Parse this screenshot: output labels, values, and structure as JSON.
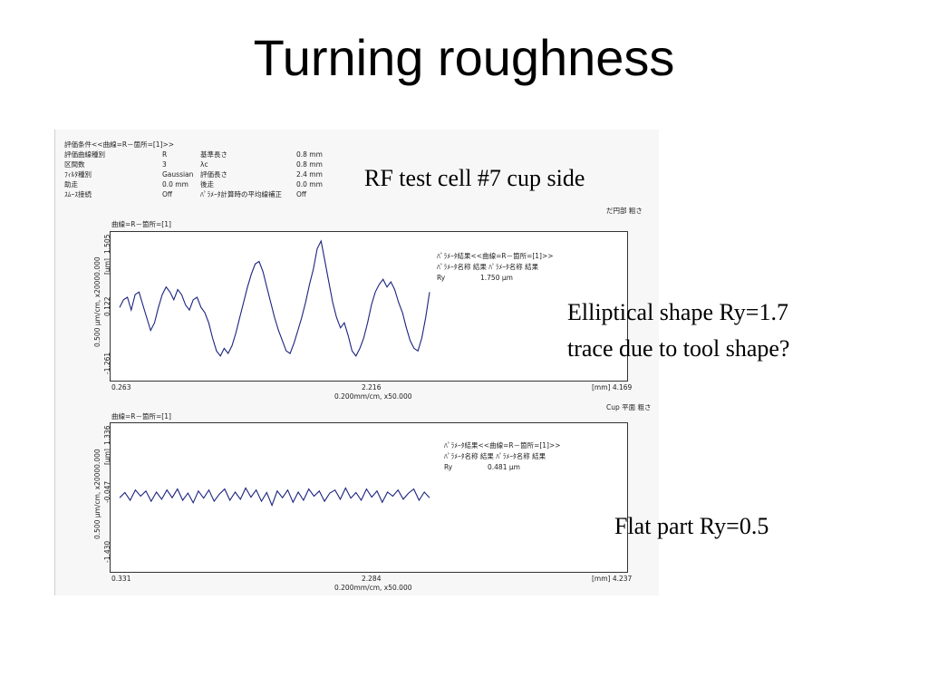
{
  "slide": {
    "title": "Turning roughness",
    "callout_cell": "RF test cell #7 cup side",
    "callout_elliptical_1": "Elliptical shape Ry=1.7",
    "callout_elliptical_2": "trace due to tool shape?",
    "callout_flat": "Flat part Ry=0.5"
  },
  "conditions": {
    "header": "評価条件<<曲線=R－箇所=[1]>>",
    "rows": [
      {
        "label": "評価曲線種別",
        "value": "R",
        "label2": "基準長さ",
        "value2": "0.8 mm"
      },
      {
        "label": "区間数",
        "value": "3",
        "label2": "λc",
        "value2": "0.8 mm"
      },
      {
        "label": "ﾌｨﾙﾀ種別",
        "value": "Gaussian",
        "label2": "評価長さ",
        "value2": "2.4 mm"
      },
      {
        "label": "助走",
        "value": "0.0 mm",
        "label2": "後走",
        "value2": "0.0 mm"
      },
      {
        "label": "ｽﾑｰｽ接続",
        "value": "Off",
        "label2": "ﾊﾟﾗﾒｰﾀ計算時の平均線補正",
        "value2": "Off"
      }
    ]
  },
  "chart1": {
    "note": "だ円部 粗さ",
    "curve_label": "曲線=R－箇所=[1]",
    "y_axis_label": "0.500 μm/cm, x20000.000",
    "y_unit": "[μm]",
    "y_ticks": [
      "1.505",
      "0.122",
      "-1.261"
    ],
    "x_ticks": [
      "0.263",
      "2.216",
      "[mm] 4.169"
    ],
    "x_scale": "0.200mm/cm, x50.000",
    "result_header": "ﾊﾟﾗﾒｰﾀ結果<<曲線=R－箇所=[1]>>",
    "result_cols": "ﾊﾟﾗﾒｰﾀ名称   結果        ﾊﾟﾗﾒｰﾀ名称   結果",
    "param_name": "Ry",
    "param_value": "1.750 μm",
    "line_color": "#1a237e"
  },
  "chart2": {
    "note": "Cup 平面 粗さ",
    "curve_label": "曲線=R－箇所=[1]",
    "y_axis_label": "0.500 μm/cm, x20000.000",
    "y_unit": "[μm]",
    "y_ticks": [
      "1.336",
      "-0.047",
      "-1.430"
    ],
    "x_ticks": [
      "0.331",
      "2.284",
      "[mm] 4.237"
    ],
    "x_scale": "0.200mm/cm, x50.000",
    "result_header": "ﾊﾟﾗﾒｰﾀ結果<<曲線=R－箇所=[1]>>",
    "result_cols": "ﾊﾟﾗﾒｰﾀ名称   結果        ﾊﾟﾗﾒｰﾀ名称   結果",
    "param_name": "Ry",
    "param_value": "0.481 μm",
    "line_color": "#1a237e"
  },
  "chart_data": [
    {
      "type": "line",
      "xlabel": "0.200mm/cm, x50.000",
      "ylabel": "0.500 μm/cm, x20000.000",
      "xlim": [
        0.263,
        4.169
      ],
      "ylim": [
        -1.261,
        1.505
      ],
      "series": [
        {
          "values": [
            0.1,
            0.25,
            0.3,
            0.05,
            0.35,
            0.4,
            0.15,
            -0.1,
            -0.35,
            -0.2,
            0.1,
            0.35,
            0.5,
            0.4,
            0.25,
            0.45,
            0.35,
            0.15,
            0.05,
            0.25,
            0.3,
            0.1,
            0.0,
            -0.2,
            -0.5,
            -0.75,
            -0.85,
            -0.7,
            -0.8,
            -0.65,
            -0.4,
            -0.1,
            0.2,
            0.5,
            0.75,
            0.95,
            1.0,
            0.8,
            0.5,
            0.2,
            -0.1,
            -0.35,
            -0.55,
            -0.75,
            -0.8,
            -0.6,
            -0.35,
            -0.1,
            0.2,
            0.55,
            0.85,
            1.25,
            1.4,
            1.0,
            0.6,
            0.2,
            -0.1,
            -0.3,
            -0.2,
            -0.45,
            -0.75,
            -0.85,
            -0.7,
            -0.5,
            -0.2,
            0.15,
            0.4,
            0.55,
            0.65,
            0.5,
            0.6,
            0.45,
            0.2,
            0.0,
            -0.3,
            -0.55,
            -0.7,
            -0.75,
            -0.5,
            -0.1,
            0.4
          ]
        }
      ]
    },
    {
      "type": "line",
      "xlabel": "0.200mm/cm, x50.000",
      "ylabel": "0.500 μm/cm, x20000.000",
      "xlim": [
        0.331,
        4.237
      ],
      "ylim": [
        -1.43,
        1.336
      ],
      "series": [
        {
          "values": [
            -0.05,
            0.05,
            -0.1,
            0.1,
            -0.02,
            0.08,
            -0.12,
            0.06,
            -0.08,
            0.1,
            -0.05,
            0.12,
            -0.1,
            0.04,
            -0.15,
            0.08,
            -0.06,
            0.1,
            -0.12,
            0.02,
            0.12,
            -0.1,
            0.06,
            -0.08,
            0.14,
            -0.04,
            0.1,
            -0.12,
            0.05,
            -0.2,
            0.08,
            -0.05,
            0.1,
            -0.14,
            0.06,
            -0.1,
            0.12,
            -0.02,
            0.08,
            -0.12,
            0.04,
            0.1,
            -0.08,
            0.14,
            -0.06,
            0.05,
            -0.1,
            0.12,
            -0.04,
            0.08,
            -0.14,
            0.06,
            -0.02,
            0.1,
            -0.08,
            0.04,
            0.12,
            -0.1,
            0.06,
            -0.05
          ]
        }
      ]
    }
  ]
}
